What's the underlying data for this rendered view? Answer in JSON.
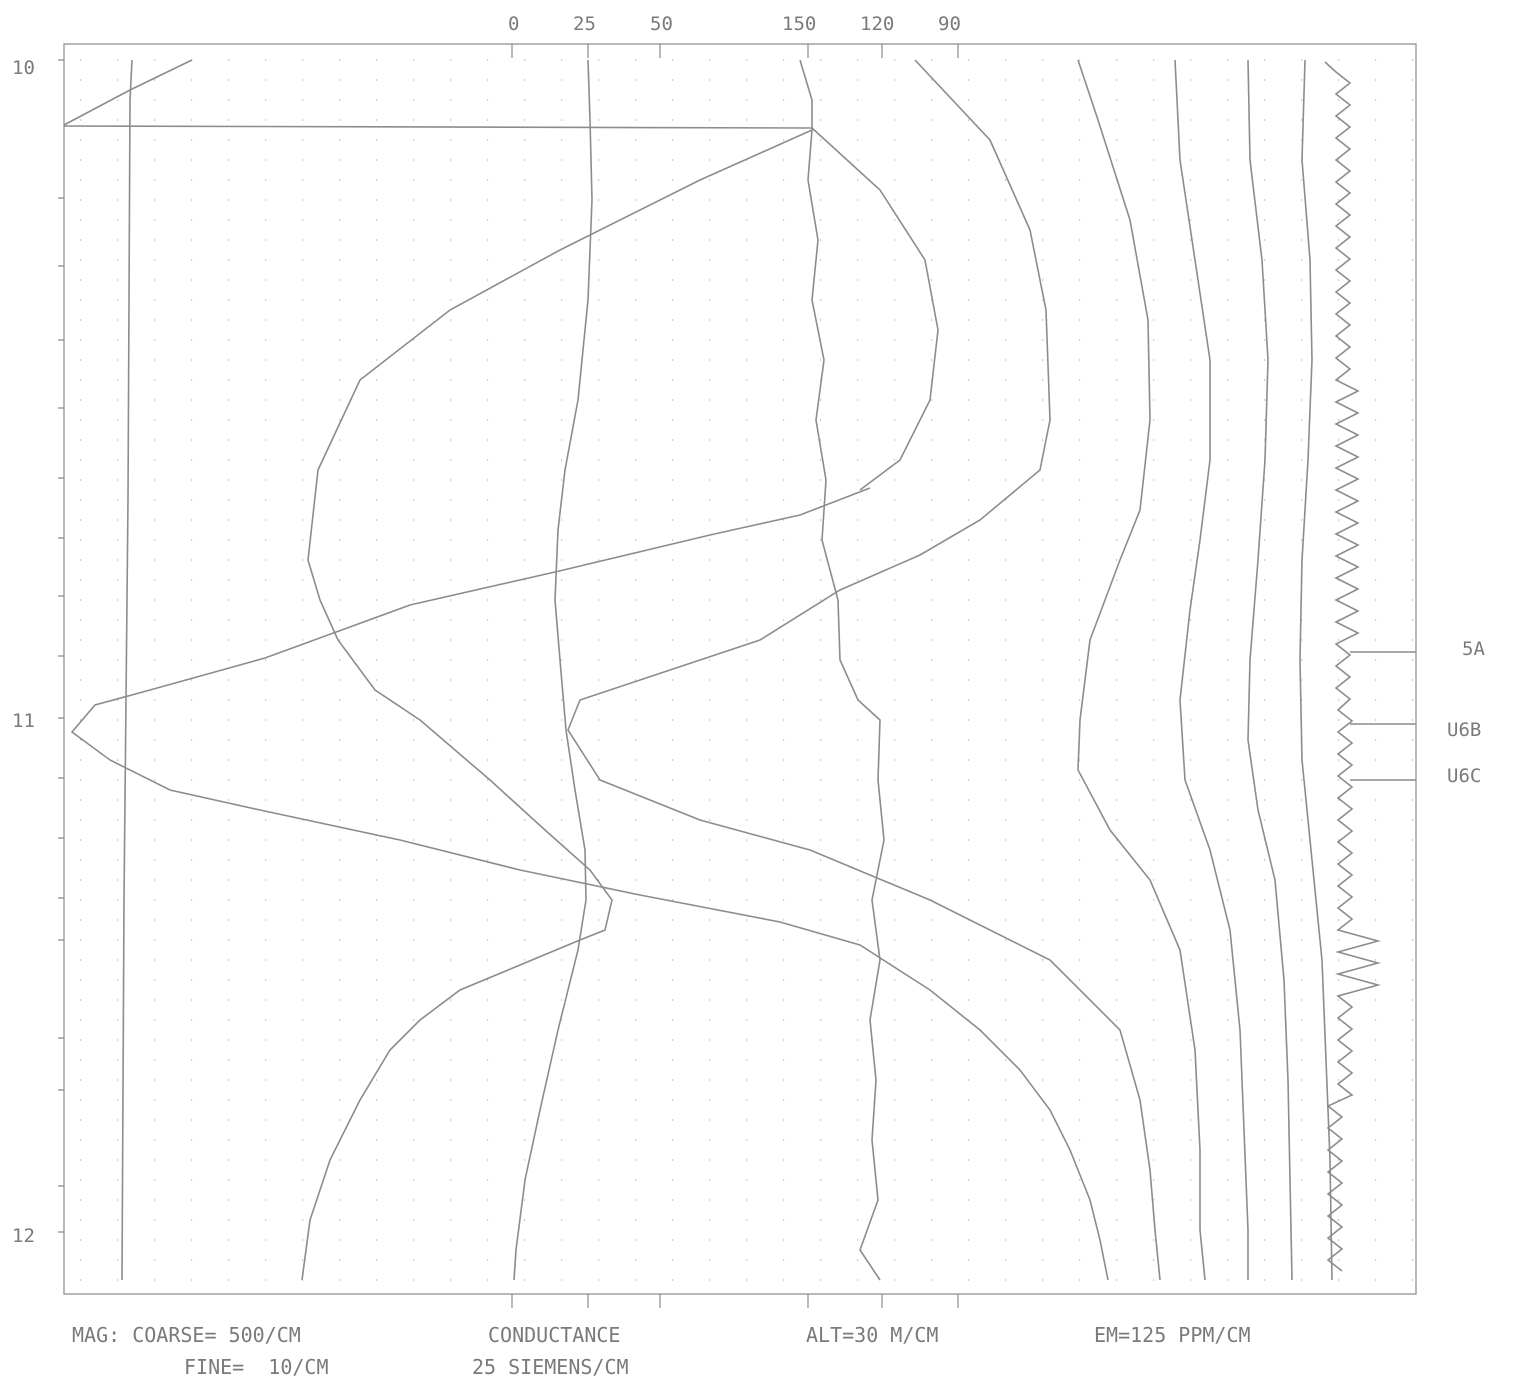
{
  "chart_data": {
    "type": "line",
    "title": "",
    "top_ticks": [
      "0",
      "25",
      "50",
      "150",
      "120",
      "90"
    ],
    "left_ticks": [
      "10",
      "11",
      "12"
    ],
    "markers": [
      "5A",
      "U6B",
      "U6C"
    ],
    "legend": {
      "mag_line1": "MAG: COARSE= 500/CM",
      "mag_line2": "FINE=  10/CM",
      "cond_line1": "CONDUCTANCE",
      "cond_line2": "25 SIEMENS/CM",
      "alt": "ALT=30 M/CM",
      "em": "EM=125 PPM/CM"
    },
    "grid": "dotted",
    "series_count": 11
  }
}
